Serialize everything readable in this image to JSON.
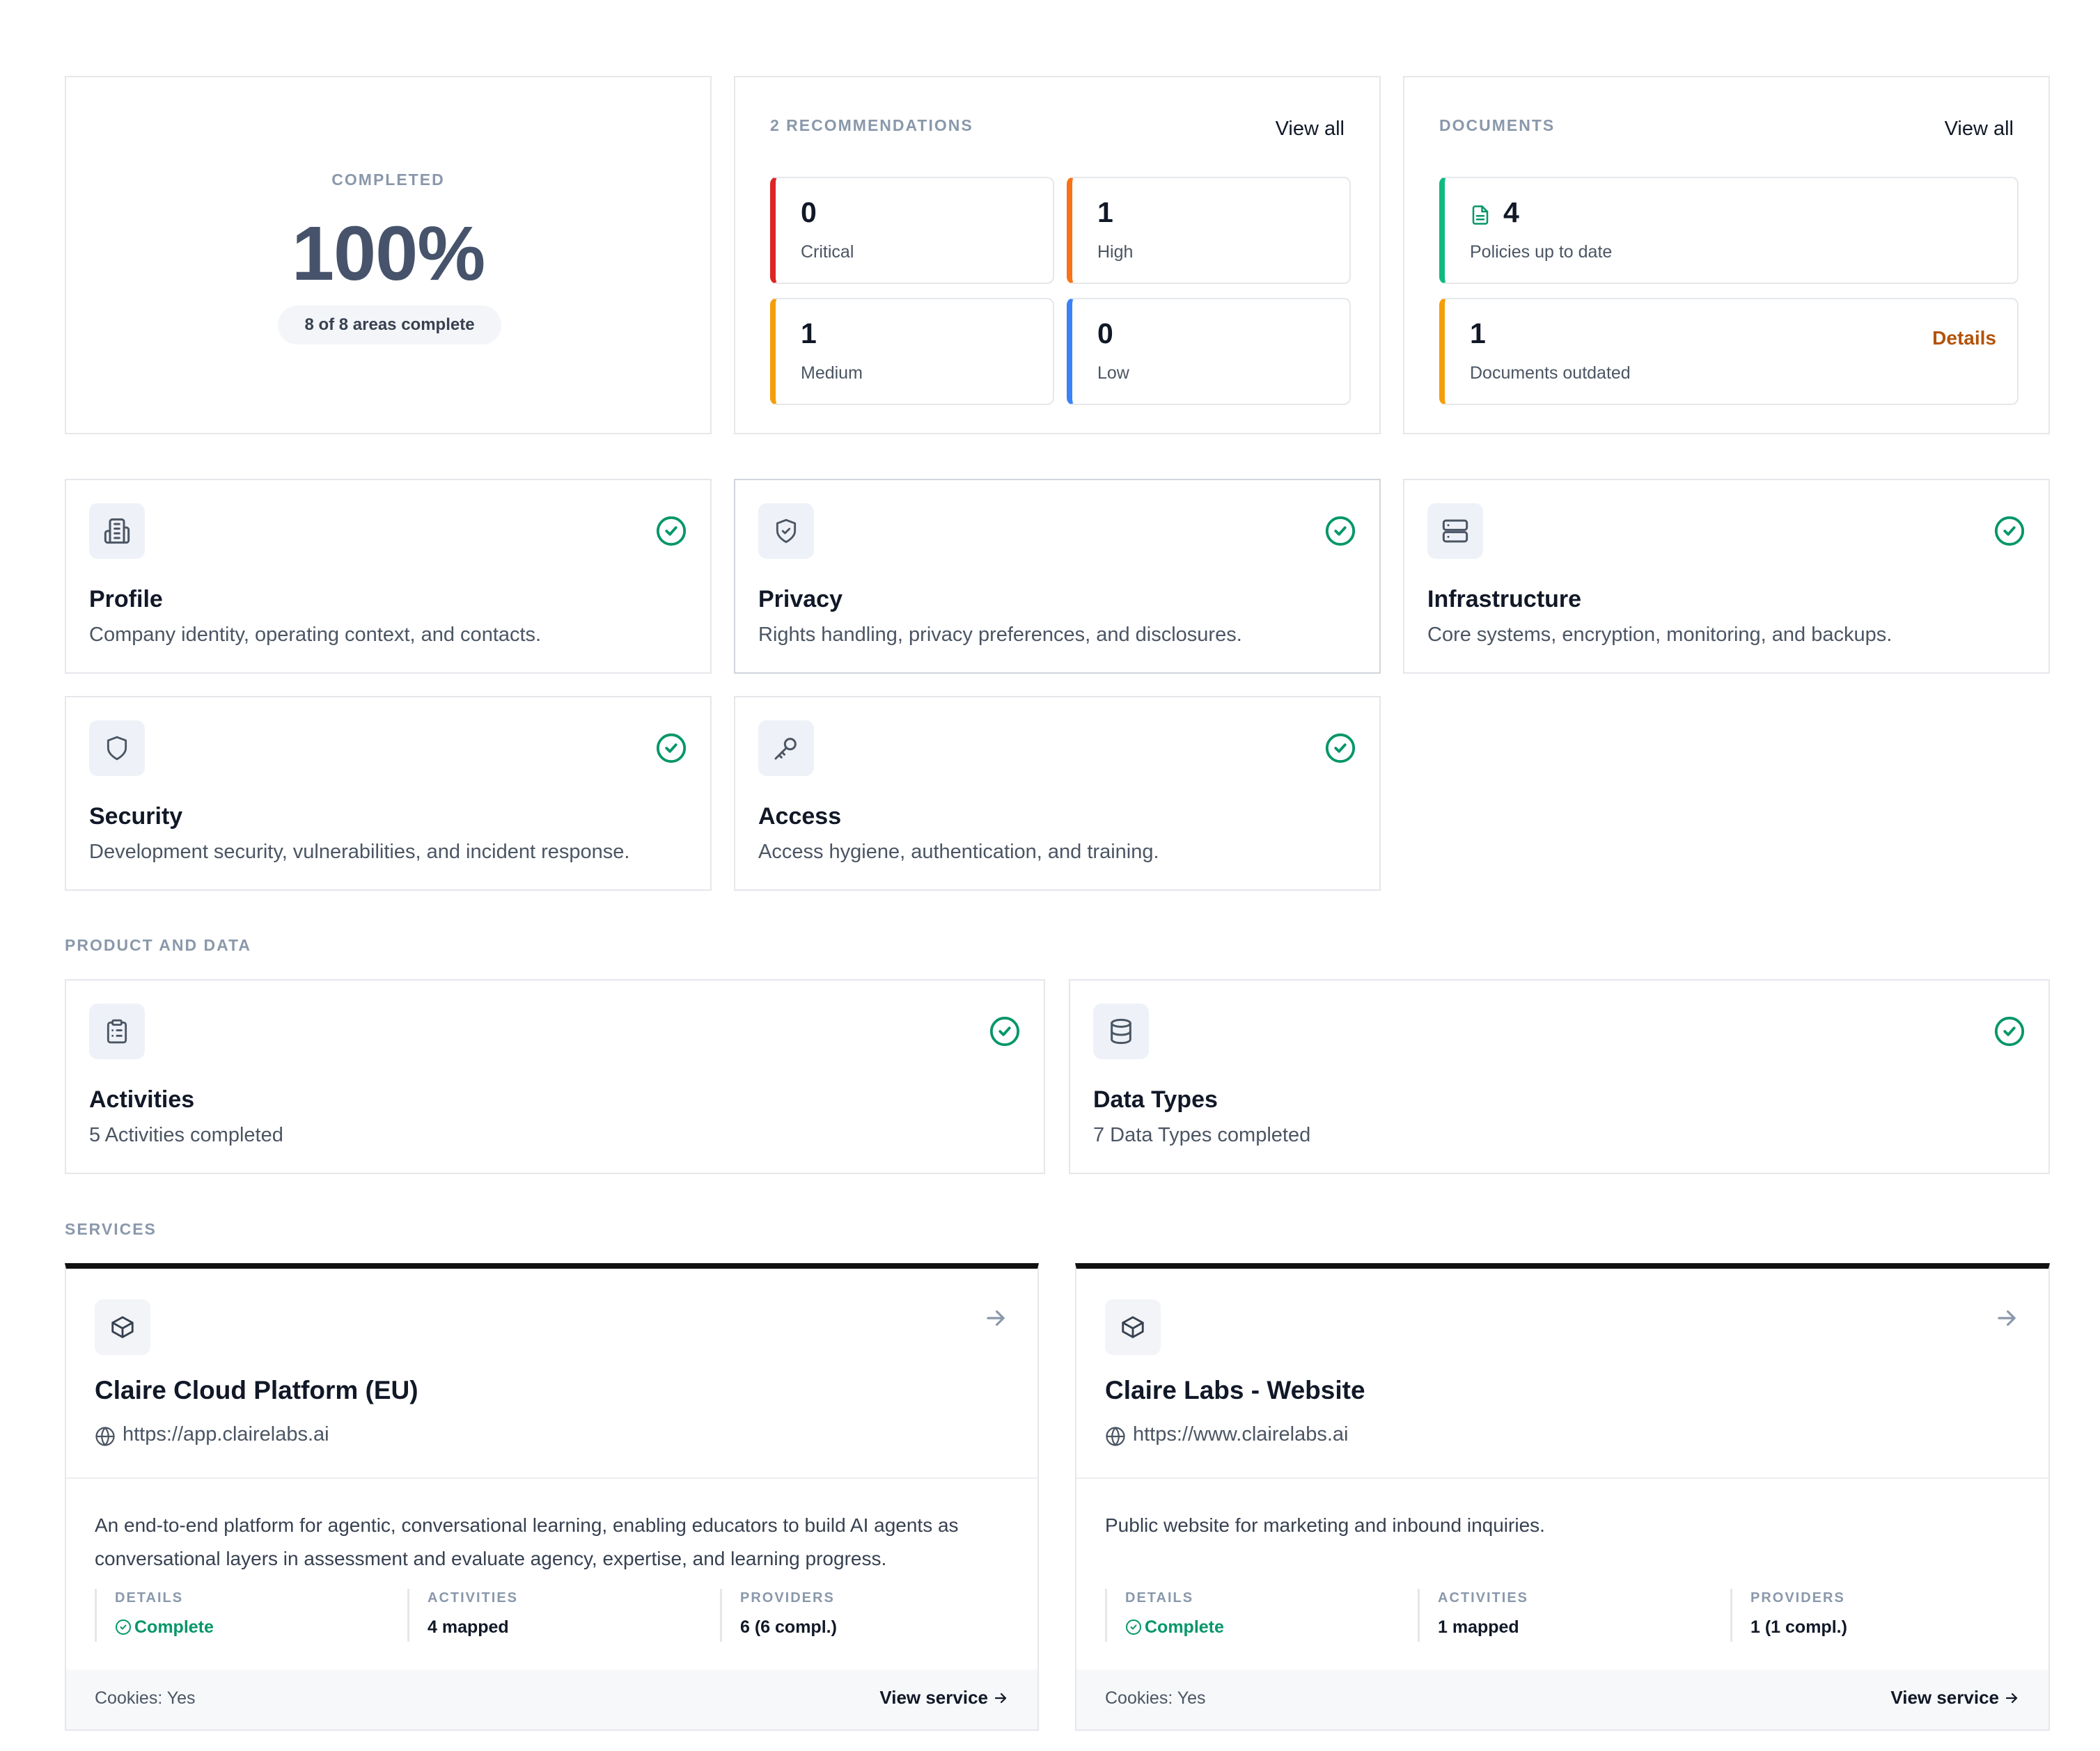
{
  "summary": {
    "label": "COMPLETED",
    "value": "100%",
    "areas_text": "8 of 8 areas complete"
  },
  "recommendations": {
    "title": "2 RECOMMENDATIONS",
    "view_all": "View all",
    "items": [
      {
        "count": "0",
        "label": "Critical",
        "color": "#dc2626"
      },
      {
        "count": "1",
        "label": "High",
        "color": "#f97316"
      },
      {
        "count": "1",
        "label": "Medium",
        "color": "#f59e0b"
      },
      {
        "count": "0",
        "label": "Low",
        "color": "#3b82f6"
      }
    ]
  },
  "documents": {
    "title": "DOCUMENTS",
    "view_all": "View all",
    "policies": {
      "count": "4",
      "label": "Policies up to date",
      "icon": "document-icon",
      "color": "#10b981"
    },
    "outdated": {
      "count": "1",
      "label": "Documents outdated",
      "action": "Details",
      "color": "#f59e0b"
    }
  },
  "areas": [
    {
      "title": "Profile",
      "desc": "Company identity, operating context, and contacts.",
      "icon": "building-icon",
      "status": "complete"
    },
    {
      "title": "Privacy",
      "desc": "Rights handling, privacy preferences, and disclosures.",
      "icon": "shield-check-icon",
      "status": "complete"
    },
    {
      "title": "Infrastructure",
      "desc": "Core systems, encryption, monitoring, and backups.",
      "icon": "server-icon",
      "status": "complete"
    },
    {
      "title": "Security",
      "desc": "Development security, vulnerabilities, and incident response.",
      "icon": "shield-icon",
      "status": "complete"
    },
    {
      "title": "Access",
      "desc": "Access hygiene, authentication, and training.",
      "icon": "key-icon",
      "status": "complete"
    }
  ],
  "product_data": {
    "label": "PRODUCT AND DATA",
    "items": [
      {
        "title": "Activities",
        "desc": "5 Activities completed",
        "icon": "clipboard-icon",
        "status": "complete"
      },
      {
        "title": "Data Types",
        "desc": "7 Data Types completed",
        "icon": "database-icon",
        "status": "complete"
      }
    ]
  },
  "services": {
    "label": "SERVICES",
    "items": [
      {
        "title": "Claire Cloud Platform (EU)",
        "url": "https://app.clairelabs.ai",
        "desc": "An end-to-end platform for agentic, conversational learning, enabling educators to build AI agents as conversational layers in assessment and evaluate agency, expertise, and learning progress.",
        "details_label": "DETAILS",
        "details_value": "Complete",
        "activities_label": "ACTIVITIES",
        "activities_value": "4 mapped",
        "providers_label": "PROVIDERS",
        "providers_value": "6 (6 compl.)",
        "cookies": "Cookies: Yes",
        "view": "View service"
      },
      {
        "title": "Claire Labs - Website",
        "url": "https://www.clairelabs.ai",
        "desc": "Public website for marketing and inbound inquiries.",
        "details_label": "DETAILS",
        "details_value": "Complete",
        "activities_label": "ACTIVITIES",
        "activities_value": "1 mapped",
        "providers_label": "PROVIDERS",
        "providers_value": "1 (1 compl.)",
        "cookies": "Cookies: Yes",
        "view": "View service"
      }
    ]
  },
  "colors": {
    "accent_green": "#059669",
    "muted_label": "#8a98ab",
    "details_link": "#b45309"
  }
}
